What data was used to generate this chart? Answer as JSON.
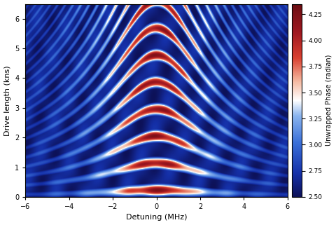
{
  "xlabel": "Detuning (MHz)",
  "ylabel": "Drive length (kns)",
  "colorbar_label": "Unwrapped Phase (radian)",
  "xlim": [
    -6,
    6
  ],
  "ylim": [
    0,
    6.5
  ],
  "clim": [
    2.5,
    4.35
  ],
  "xticks": [
    -6,
    -4,
    -2,
    0,
    2,
    4,
    6
  ],
  "yticks": [
    0,
    1,
    2,
    3,
    4,
    5,
    6
  ],
  "cticks": [
    2.5,
    2.75,
    3.0,
    3.25,
    3.5,
    3.75,
    4.0,
    4.25
  ],
  "detuning_range": [
    -6,
    6
  ],
  "time_range": [
    0,
    6.5
  ],
  "n_detuning": 800,
  "n_time": 700,
  "omega_rabi": 2.2,
  "figsize": [
    4.8,
    3.21
  ],
  "dpi": 100,
  "colors": [
    [
      0.0,
      "#0d1158"
    ],
    [
      0.12,
      "#1530a8"
    ],
    [
      0.28,
      "#3a6fd8"
    ],
    [
      0.42,
      "#8ab4ee"
    ],
    [
      0.5,
      "#ffffff"
    ],
    [
      0.6,
      "#f5b8a0"
    ],
    [
      0.72,
      "#d94030"
    ],
    [
      0.85,
      "#a01820"
    ],
    [
      1.0,
      "#6b0d12"
    ]
  ]
}
